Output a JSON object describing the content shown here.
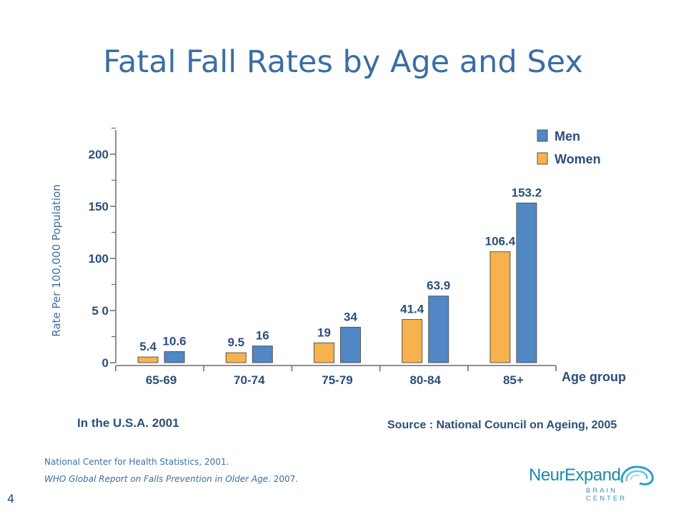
{
  "slide": {
    "title": "Fatal Fall Rates by Age and Sex",
    "page_number": "4",
    "references": {
      "line1": "National Center for Health Statistics, 2001.",
      "line2_italic": "WHO Global Report on Falls Prevention in Older Age",
      "line2_suffix": ". 2007."
    },
    "logo": {
      "name": "NeurExpand",
      "sub": "BRAIN CENTER"
    }
  },
  "chart_data": {
    "type": "bar",
    "categories": [
      "65-69",
      "70-74",
      "75-79",
      "80-84",
      "85+"
    ],
    "series": [
      {
        "name": "Women",
        "values": [
          5.4,
          9.5,
          19,
          41.4,
          106.4
        ],
        "labels": [
          "5.4",
          "9.5",
          "19",
          "41.4",
          "106.4"
        ],
        "color": "#f7b24d"
      },
      {
        "name": "Men",
        "values": [
          10.6,
          16,
          34,
          63.9,
          153.2
        ],
        "labels": [
          "10.6",
          "16",
          "34",
          "63.9",
          "153.2"
        ],
        "color": "#4f88c4"
      }
    ],
    "legend_order": [
      "Men",
      "Women"
    ],
    "legend_position": "top-right",
    "ylabel": "Rate Per 100,000 Population",
    "xlabel": "Age group",
    "ylim": [
      0,
      225
    ],
    "y_ticks": [
      0,
      50,
      100,
      150,
      200
    ],
    "y_tick_labels": [
      "0",
      "5 0",
      "100",
      "150",
      "200"
    ],
    "footnote_left": "In the U.S.A. 2001",
    "source": "Source : National Council on Ageing, 2005"
  }
}
